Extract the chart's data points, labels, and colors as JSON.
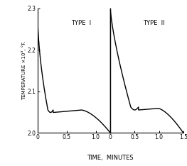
{
  "title": "",
  "ylabel": "TEMPERATURE ×10³, °F.",
  "xlabel": "TIME,  MINUTES",
  "ylim": [
    2.0,
    2.3
  ],
  "yticks": [
    2.0,
    2.1,
    2.2,
    2.3
  ],
  "ytick_labels": [
    "2.0",
    "2.1",
    "2.2",
    "2.3"
  ],
  "type1_label": "TYPE  I",
  "type2_label": "TYPE  II",
  "type1_xlim": [
    0,
    1.25
  ],
  "type2_xlim": [
    0,
    1.5
  ],
  "type1_xticks": [
    0,
    0.5,
    1.0
  ],
  "type2_xticks": [
    0,
    0.5,
    1.0,
    1.5
  ],
  "background_color": "#ffffff",
  "line_color": "#000000",
  "linewidth": 1.0
}
